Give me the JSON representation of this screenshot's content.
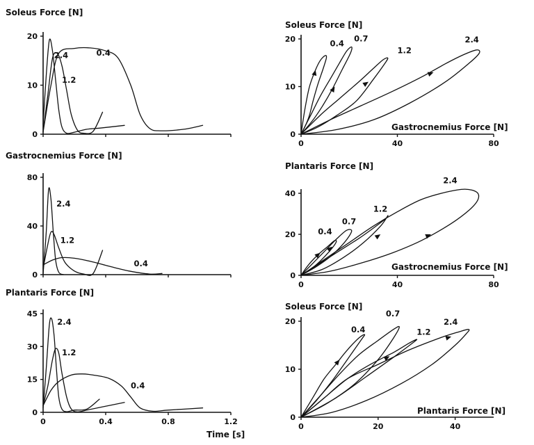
{
  "chart_data": [
    {
      "type": "line",
      "ylabel": "Soleus Force [N]",
      "xlabel": "",
      "xlim": [
        0,
        1.2
      ],
      "ylim": [
        0,
        20
      ],
      "xticks": [],
      "yticks": [
        "0",
        "10",
        "20"
      ],
      "series": [
        {
          "name": "2.4",
          "x": [
            0,
            0.02,
            0.04,
            0.06,
            0.08,
            0.1,
            0.12,
            0.15,
            0.2,
            0.28,
            0.38,
            0.52
          ],
          "y": [
            2,
            12,
            19.2,
            17,
            11,
            5,
            1.5,
            0.2,
            0.4,
            1,
            1.3,
            1.8
          ]
        },
        {
          "name": "1.2",
          "x": [
            0,
            0.03,
            0.06,
            0.09,
            0.12,
            0.15,
            0.18,
            0.22,
            0.26,
            0.32,
            0.38
          ],
          "y": [
            0.5,
            8,
            15.5,
            16.5,
            14,
            9,
            4,
            0.8,
            0.2,
            0.6,
            4.5
          ]
        },
        {
          "name": "0.4",
          "x": [
            0,
            0.05,
            0.1,
            0.2,
            0.3,
            0.4,
            0.48,
            0.56,
            0.62,
            0.68,
            0.75,
            0.9,
            1.02
          ],
          "y": [
            0.5,
            10,
            16.5,
            17.5,
            17.6,
            17,
            15.5,
            10,
            4,
            1.2,
            0.7,
            1,
            1.8
          ]
        }
      ]
    },
    {
      "type": "line",
      "ylabel": "Gastrocnemius Force [N]",
      "xlabel": "",
      "xlim": [
        0,
        1.2
      ],
      "ylim": [
        0,
        80
      ],
      "xticks": [],
      "yticks": [
        "0",
        "40",
        "80"
      ],
      "series": [
        {
          "name": "2.4",
          "x": [
            0,
            0.02,
            0.035,
            0.05,
            0.065,
            0.08,
            0.1,
            0.13
          ],
          "y": [
            1,
            35,
            70,
            62,
            35,
            12,
            2,
            0
          ]
        },
        {
          "name": "1.2",
          "x": [
            0,
            0.03,
            0.05,
            0.07,
            0.1,
            0.14,
            0.2,
            0.26,
            0.32,
            0.38
          ],
          "y": [
            5,
            25,
            35,
            33,
            22,
            10,
            3,
            0.5,
            1,
            20
          ]
        },
        {
          "name": "0.4",
          "x": [
            0,
            0.06,
            0.12,
            0.2,
            0.3,
            0.42,
            0.55,
            0.68,
            0.76
          ],
          "y": [
            8,
            12,
            14,
            13.5,
            11,
            7,
            3,
            0.5,
            1
          ]
        }
      ]
    },
    {
      "type": "line",
      "ylabel": "Plantaris Force [N]",
      "xlabel": "Time [s]",
      "xlim": [
        0,
        1.2
      ],
      "ylim": [
        0,
        45
      ],
      "xticks": [
        "0",
        "0.4",
        "0.8",
        "1.2"
      ],
      "yticks": [
        "0",
        "15",
        "30",
        "45"
      ],
      "series": [
        {
          "name": "2.4",
          "x": [
            0,
            0.02,
            0.04,
            0.055,
            0.07,
            0.085,
            0.1,
            0.12,
            0.15,
            0.2,
            0.28,
            0.36
          ],
          "y": [
            2,
            20,
            40,
            42.5,
            35,
            20,
            7,
            1.5,
            0.3,
            1,
            1.5,
            6
          ]
        },
        {
          "name": "1.2",
          "x": [
            0,
            0.03,
            0.06,
            0.08,
            0.1,
            0.12,
            0.15,
            0.18,
            0.22,
            0.28,
            0.38,
            0.52
          ],
          "y": [
            3,
            12,
            24,
            29,
            27,
            18,
            7,
            1.5,
            0.2,
            1,
            2.5,
            4.5
          ]
        },
        {
          "name": "0.4",
          "x": [
            0,
            0.05,
            0.1,
            0.18,
            0.25,
            0.32,
            0.42,
            0.5,
            0.56,
            0.62,
            0.7,
            0.8,
            1.02
          ],
          "y": [
            3,
            10,
            14,
            17,
            17.5,
            17,
            15.5,
            12,
            7,
            2,
            0.5,
            1,
            2
          ]
        }
      ]
    },
    {
      "type": "line",
      "ylabel": "Soleus Force [N]",
      "xlabel": "Gastrocnemius Force [N]",
      "xlim": [
        0,
        80
      ],
      "ylim": [
        0,
        20
      ],
      "xticks": [
        "0",
        "40",
        "80"
      ],
      "yticks": [
        "0",
        "10",
        "20"
      ],
      "series": [
        {
          "name": "0.4",
          "x": [
            0,
            1.5,
            3.5,
            6,
            8,
            10,
            10.5,
            9,
            7,
            5,
            3.5,
            2,
            0
          ],
          "y": [
            0,
            5,
            10,
            13.5,
            15.5,
            16.5,
            16,
            13.5,
            10.5,
            7,
            4,
            2,
            0
          ]
        },
        {
          "name": "0.7",
          "x": [
            0,
            4,
            8,
            12,
            16,
            19,
            21,
            20.5,
            17,
            13,
            9,
            5,
            0
          ],
          "y": [
            0,
            4,
            8,
            11.5,
            15,
            17.5,
            18.3,
            17,
            13.5,
            9.5,
            6,
            3,
            0
          ]
        },
        {
          "name": "1.2",
          "x": [
            0,
            8,
            16,
            24,
            30,
            34,
            36,
            35,
            30,
            23,
            15,
            7,
            0
          ],
          "y": [
            0,
            4,
            7.5,
            11,
            13.8,
            15.6,
            16,
            15,
            11.5,
            7,
            4,
            1.5,
            0
          ]
        },
        {
          "name": "2.4",
          "x": [
            0,
            12,
            25,
            38,
            50,
            60,
            68,
            73,
            74,
            70,
            60,
            45,
            30,
            15,
            0
          ],
          "y": [
            0,
            3,
            6,
            9,
            12,
            14.8,
            16.8,
            17.7,
            17,
            15,
            11,
            6.5,
            3,
            1,
            0
          ]
        }
      ]
    },
    {
      "type": "line",
      "ylabel": "Plantaris Force [N]",
      "xlabel": "Gastrocnemius Force [N]",
      "xlim": [
        0,
        80
      ],
      "ylim": [
        0,
        40
      ],
      "xticks": [
        "0",
        "40",
        "80"
      ],
      "yticks": [
        "0",
        "20",
        "40"
      ],
      "series": [
        {
          "name": "0.4",
          "x": [
            0,
            3,
            7,
            11,
            14,
            14.5,
            12,
            8,
            4,
            0
          ],
          "y": [
            0,
            5,
            10,
            14,
            17,
            16,
            12,
            7,
            3,
            0
          ]
        },
        {
          "name": "0.7",
          "x": [
            0,
            5,
            10,
            15,
            19,
            21,
            18,
            12,
            6,
            0
          ],
          "y": [
            0,
            6,
            12,
            18,
            22,
            21.5,
            16,
            9,
            4,
            0
          ]
        },
        {
          "name": "1.2",
          "x": [
            0,
            8,
            16,
            24,
            30,
            35,
            36,
            33,
            26,
            18,
            9,
            0
          ],
          "y": [
            0,
            6,
            12,
            18,
            23,
            27.5,
            29,
            24,
            16,
            9,
            3,
            0
          ]
        },
        {
          "name": "2.4",
          "x": [
            0,
            10,
            20,
            30,
            40,
            50,
            60,
            68,
            73,
            73.5,
            70,
            62,
            50,
            38,
            25,
            12,
            0
          ],
          "y": [
            0,
            8,
            16,
            24,
            31,
            37,
            40.5,
            42,
            40.5,
            37,
            32,
            25,
            17,
            11,
            6,
            2,
            0
          ]
        }
      ]
    },
    {
      "type": "line",
      "ylabel": "Soleus Force [N]",
      "xlabel": "Plantaris Force [N]",
      "xlim": [
        0,
        50
      ],
      "ylim": [
        0,
        20
      ],
      "xticks": [
        "0",
        "20",
        "40"
      ],
      "yticks": [
        "0",
        "10",
        "20"
      ],
      "series": [
        {
          "name": "0.4",
          "x": [
            0,
            3,
            6,
            9,
            12,
            15,
            16.5,
            15.5,
            12,
            8,
            4,
            0
          ],
          "y": [
            0,
            4,
            8,
            11,
            14,
            16.5,
            17.2,
            16,
            12,
            7.5,
            3.5,
            0
          ]
        },
        {
          "name": "0.7",
          "x": [
            0,
            5,
            10,
            15,
            20,
            24,
            25.5,
            24,
            20,
            14,
            7,
            0
          ],
          "y": [
            0,
            4.5,
            9,
            13,
            16,
            18.3,
            18.8,
            16.5,
            12,
            7,
            3,
            0
          ]
        },
        {
          "name": "1.2",
          "x": [
            0,
            6,
            12,
            18,
            24,
            28,
            30,
            29,
            24,
            17,
            9,
            0
          ],
          "y": [
            0,
            4,
            8,
            11,
            13.5,
            15.4,
            16.2,
            15.5,
            12.5,
            8.5,
            4,
            0
          ]
        },
        {
          "name": "2.4",
          "x": [
            0,
            6,
            12,
            20,
            28,
            36,
            41,
            43.5,
            43,
            40,
            34,
            26,
            17,
            8,
            0
          ],
          "y": [
            0,
            4,
            8,
            11,
            14,
            16.5,
            17.8,
            18.3,
            17.5,
            15,
            11,
            7,
            3.5,
            1,
            0
          ]
        }
      ]
    }
  ]
}
